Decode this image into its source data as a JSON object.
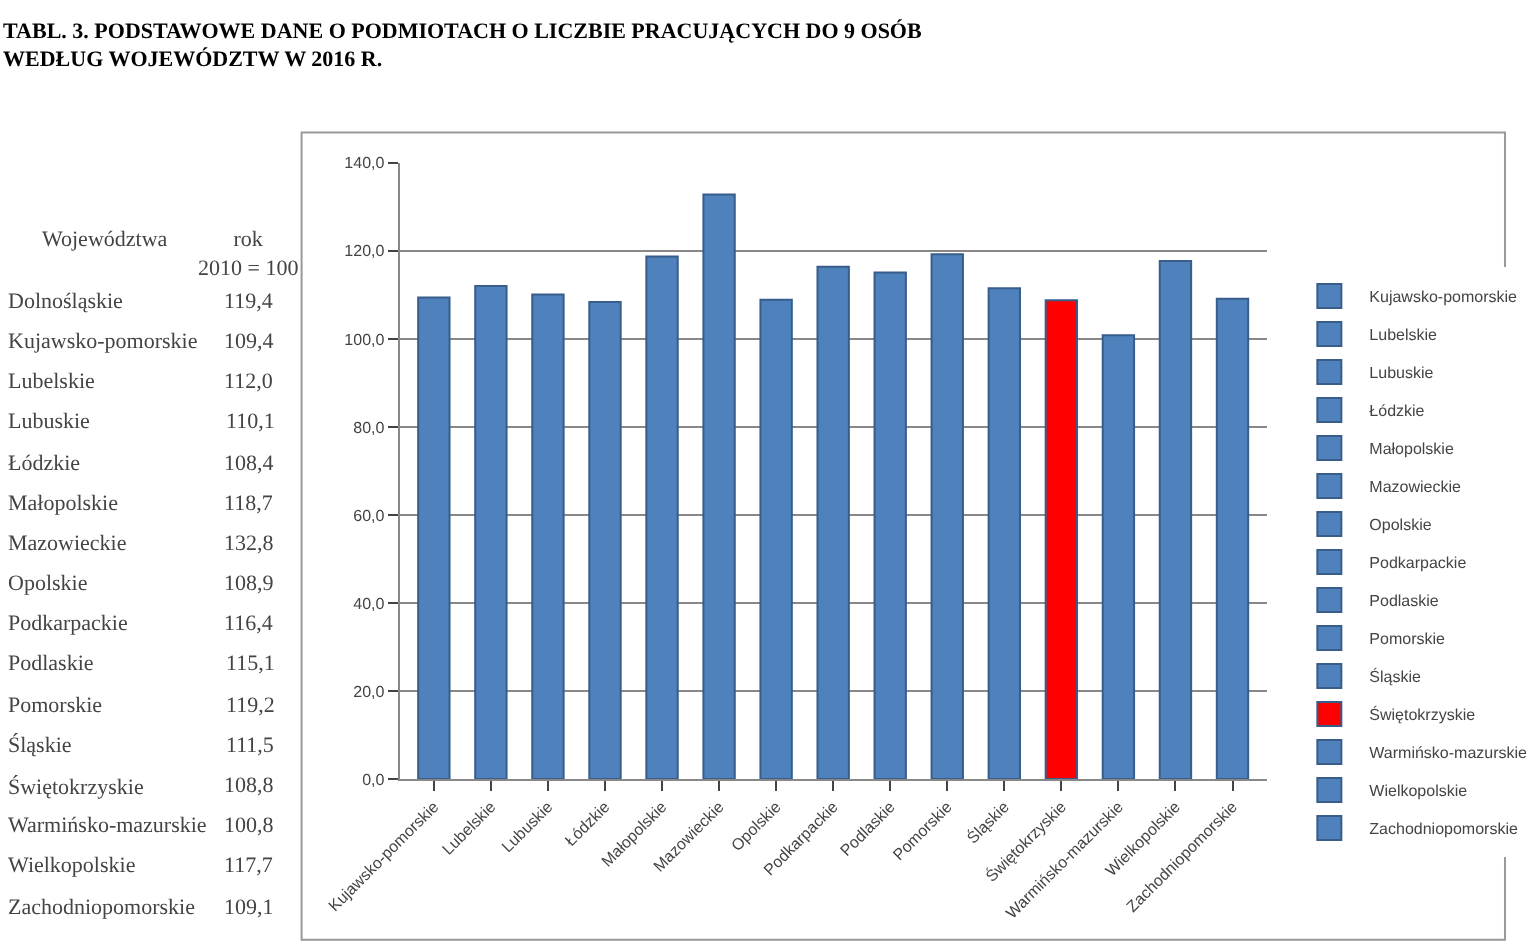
{
  "chart_data": {
    "type": "bar",
    "title": "TABL. 3. PODSTAWOWE DANE O PODMIOTACH O LICZBIE PRACUJĄCYCH DO 9 OSÓB\nWEDŁUG WOJEWÓDZTW W 2016 R.",
    "categories": [
      "Kujawsko-pomorskie",
      "Lubelskie",
      "Lubuskie",
      "Łódzkie",
      "Małopolskie",
      "Mazowieckie",
      "Opolskie",
      "Podkarpackie",
      "Podlaskie",
      "Pomorskie",
      "Śląskie",
      "Świętokrzyskie",
      "Warmińsko-mazurskie",
      "Wielkopolskie",
      "Zachodniopomorskie"
    ],
    "series": [
      {
        "name": "Kujawsko-pomorskie",
        "color": "#4f81bd",
        "values": [
          109.4,
          null,
          null,
          null,
          null,
          null,
          null,
          null,
          null,
          null,
          null,
          null,
          null,
          null,
          null
        ]
      },
      {
        "name": "Lubelskie",
        "color": "#4f81bd",
        "values": [
          null,
          112.0,
          null,
          null,
          null,
          null,
          null,
          null,
          null,
          null,
          null,
          null,
          null,
          null,
          null
        ]
      },
      {
        "name": "Lubuskie",
        "color": "#4f81bd",
        "values": [
          null,
          null,
          110.1,
          null,
          null,
          null,
          null,
          null,
          null,
          null,
          null,
          null,
          null,
          null,
          null
        ]
      },
      {
        "name": "Łódzkie",
        "color": "#4f81bd",
        "values": [
          null,
          null,
          null,
          108.4,
          null,
          null,
          null,
          null,
          null,
          null,
          null,
          null,
          null,
          null,
          null
        ]
      },
      {
        "name": "Małopolskie",
        "color": "#4f81bd",
        "values": [
          null,
          null,
          null,
          null,
          118.7,
          null,
          null,
          null,
          null,
          null,
          null,
          null,
          null,
          null,
          null
        ]
      },
      {
        "name": "Mazowieckie",
        "color": "#4f81bd",
        "values": [
          null,
          null,
          null,
          null,
          null,
          132.8,
          null,
          null,
          null,
          null,
          null,
          null,
          null,
          null,
          null
        ]
      },
      {
        "name": "Opolskie",
        "color": "#4f81bd",
        "values": [
          null,
          null,
          null,
          null,
          null,
          null,
          108.9,
          null,
          null,
          null,
          null,
          null,
          null,
          null,
          null
        ]
      },
      {
        "name": "Podkarpackie",
        "color": "#4f81bd",
        "values": [
          null,
          null,
          null,
          null,
          null,
          null,
          null,
          116.4,
          null,
          null,
          null,
          null,
          null,
          null,
          null
        ]
      },
      {
        "name": "Podlaskie",
        "color": "#4f81bd",
        "values": [
          null,
          null,
          null,
          null,
          null,
          null,
          null,
          null,
          115.1,
          null,
          null,
          null,
          null,
          null,
          null
        ]
      },
      {
        "name": "Pomorskie",
        "color": "#4f81bd",
        "values": [
          null,
          null,
          null,
          null,
          null,
          null,
          null,
          null,
          null,
          119.2,
          null,
          null,
          null,
          null,
          null
        ]
      },
      {
        "name": "Śląskie",
        "color": "#4f81bd",
        "values": [
          null,
          null,
          null,
          null,
          null,
          null,
          null,
          null,
          null,
          null,
          111.5,
          null,
          null,
          null,
          null
        ]
      },
      {
        "name": "Świętokrzyskie",
        "color": "#ff0000",
        "values": [
          null,
          null,
          null,
          null,
          null,
          null,
          null,
          null,
          null,
          null,
          null,
          108.8,
          null,
          null,
          null
        ]
      },
      {
        "name": "Warmińsko-mazurskie",
        "color": "#4f81bd",
        "values": [
          null,
          null,
          null,
          null,
          null,
          null,
          null,
          null,
          null,
          null,
          null,
          null,
          100.8,
          null,
          null
        ]
      },
      {
        "name": "Wielkopolskie",
        "color": "#4f81bd",
        "values": [
          null,
          null,
          null,
          null,
          null,
          null,
          null,
          null,
          null,
          null,
          null,
          null,
          null,
          117.7,
          null
        ]
      },
      {
        "name": "Zachodniopomorskie",
        "color": "#4f81bd",
        "values": [
          null,
          null,
          null,
          null,
          null,
          null,
          null,
          null,
          null,
          null,
          null,
          null,
          null,
          null,
          109.1
        ]
      }
    ],
    "ylim": [
      0,
      140
    ],
    "yticks": [
      {
        "value": 0,
        "label": "0,0"
      },
      {
        "value": 20,
        "label": "20,0"
      },
      {
        "value": 40,
        "label": "40,0"
      },
      {
        "value": 60,
        "label": "60,0"
      },
      {
        "value": 80,
        "label": "80,0"
      },
      {
        "value": 100,
        "label": "100,0"
      },
      {
        "value": 120,
        "label": "120,0"
      },
      {
        "value": 140,
        "label": "140,0"
      }
    ],
    "grid": "y",
    "legend": "right",
    "annotations": [
      "Województwa",
      "rok 2010 = 100",
      "Dolnośląskie",
      "119,4",
      "Kujawsko-pomorskie",
      "109,4",
      "Lubelskie",
      "112,0",
      "Lubuskie",
      "110,1",
      "Łódzkie",
      "108,4",
      "Małopolskie",
      "118,7",
      "Mazowieckie",
      "132,8",
      "Opolskie",
      "108,9",
      "Podkarpackie",
      "116,4",
      "Podlaskie",
      "115,1",
      "Pomorskie",
      "119,2",
      "Śląskie",
      "111,5",
      "Świętokrzyskie",
      "108,8",
      "Warmińsko-mazurskie",
      "100,8",
      "Wielkopolskie",
      "117,7",
      "Zachodniopomorskie",
      "109,1"
    ]
  }
}
